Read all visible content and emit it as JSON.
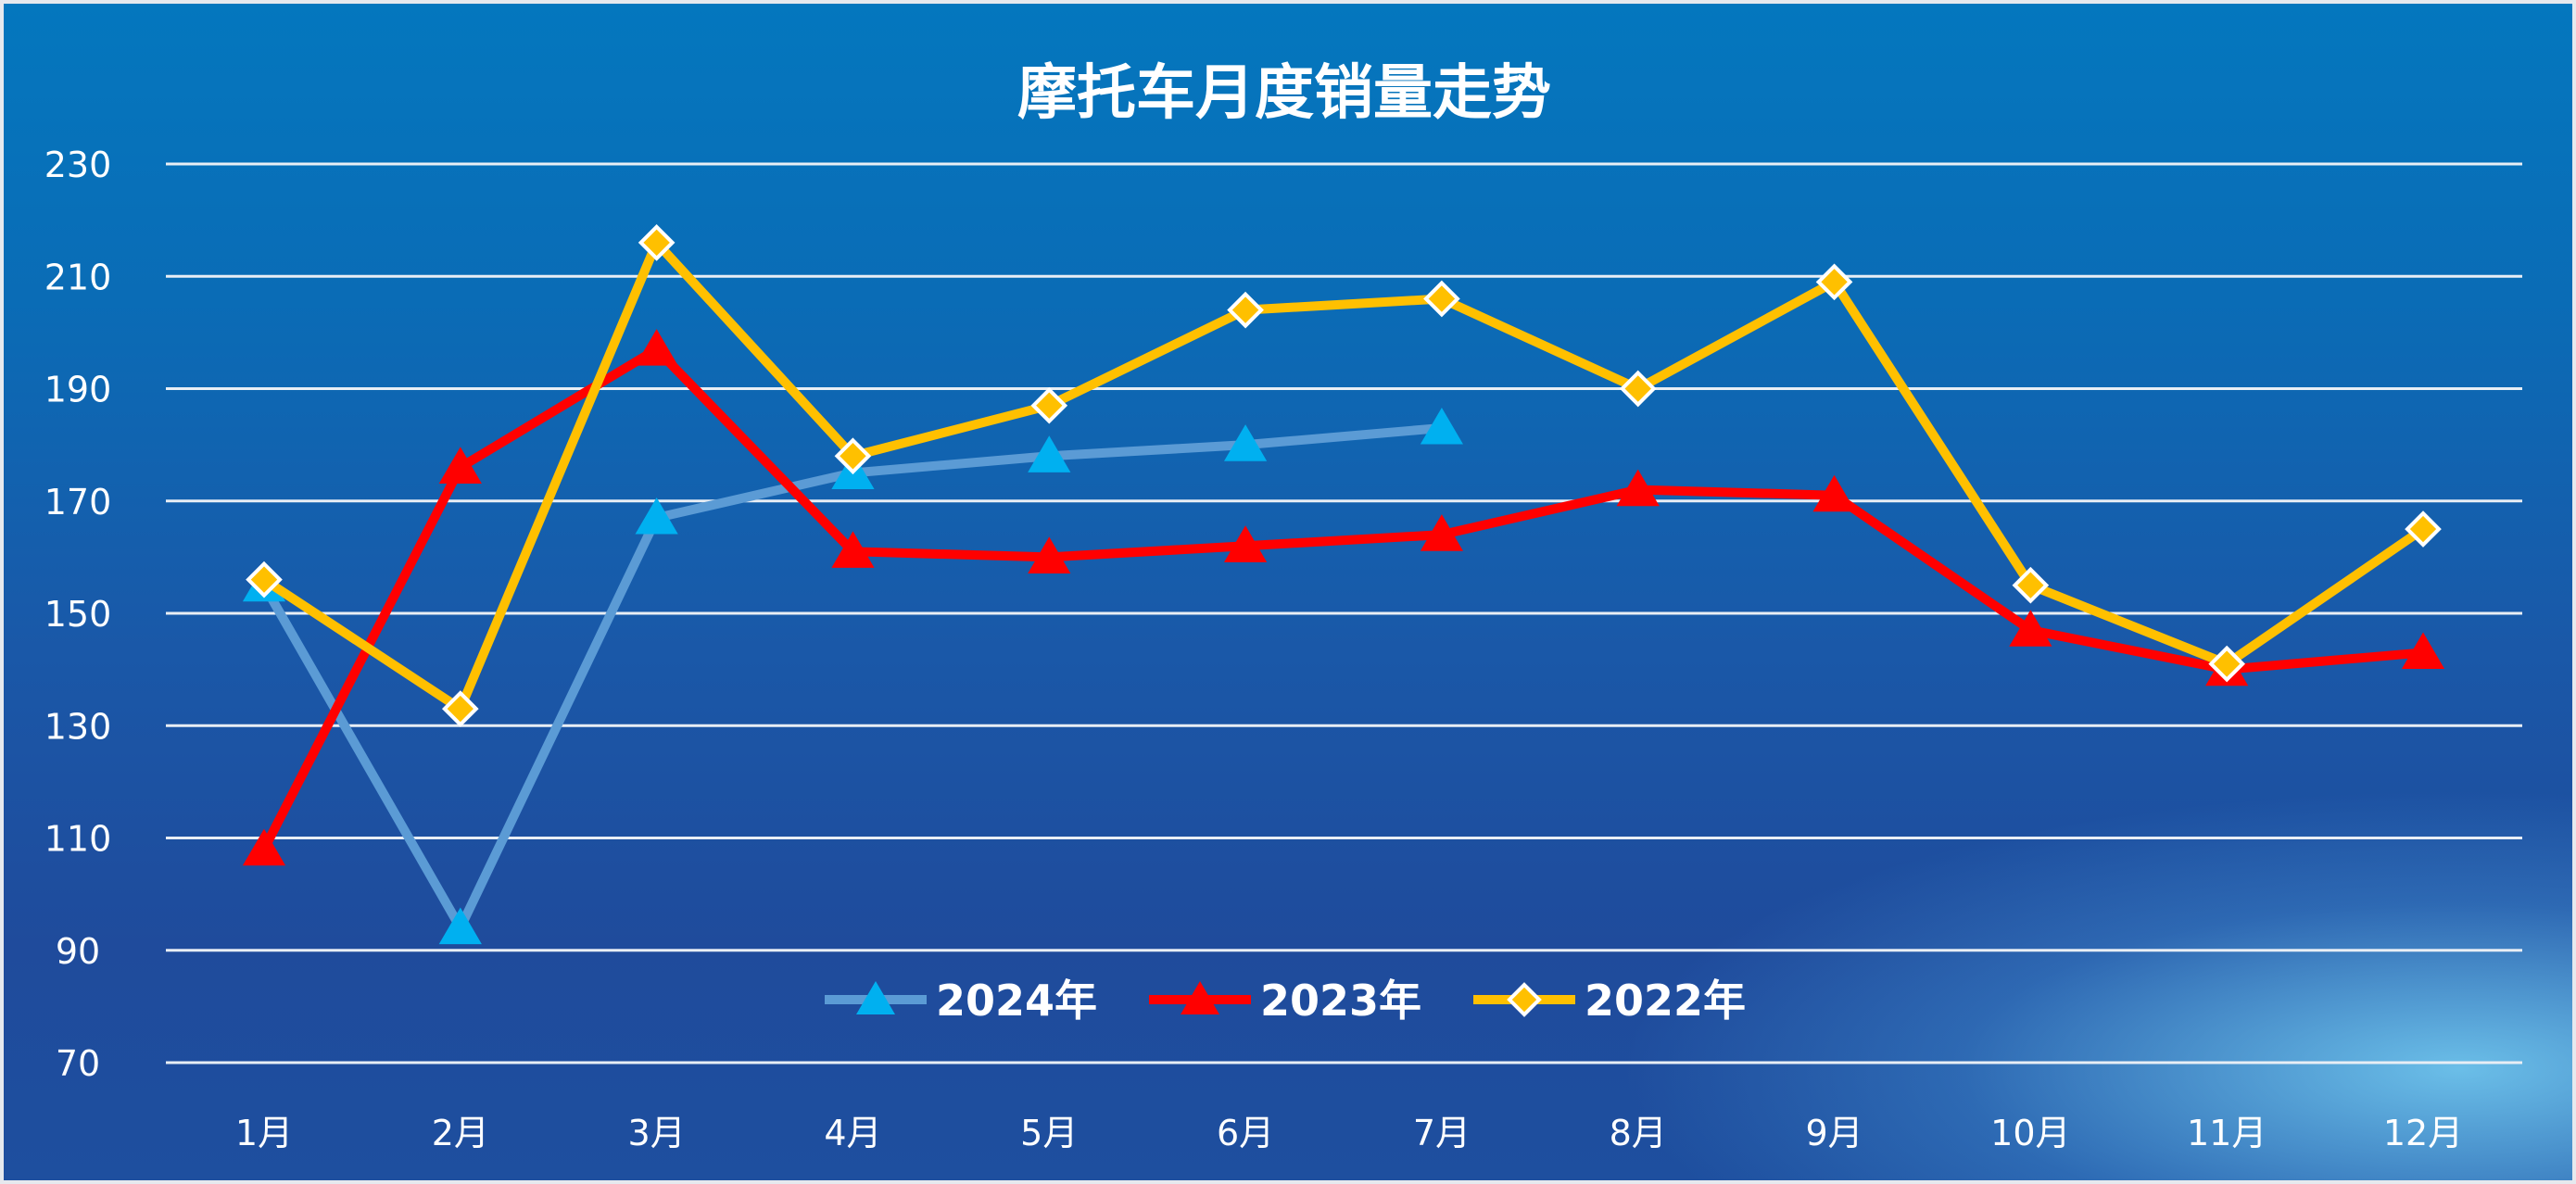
{
  "chart_data": {
    "type": "line",
    "title": "摩托车月度销量走势",
    "xlabel": "",
    "ylabel": "",
    "categories": [
      "1月",
      "2月",
      "3月",
      "4月",
      "5月",
      "6月",
      "7月",
      "8月",
      "9月",
      "10月",
      "11月",
      "12月"
    ],
    "ylim": [
      70,
      230
    ],
    "yticks": [
      70,
      90,
      110,
      130,
      150,
      170,
      190,
      210,
      230
    ],
    "grid": true,
    "legend_position": "bottom-center",
    "series": [
      {
        "name": "2024年",
        "color": "#5b9bd5",
        "marker": "triangle",
        "marker_color": "#00b0f0",
        "values": [
          155,
          94,
          167,
          175,
          178,
          180,
          183,
          null,
          null,
          null,
          null,
          null
        ]
      },
      {
        "name": "2023年",
        "color": "#ff0000",
        "marker": "triangle",
        "marker_color": "#ff0000",
        "values": [
          108,
          176,
          197,
          161,
          160,
          162,
          164,
          172,
          171,
          147,
          140,
          143
        ]
      },
      {
        "name": "2022年",
        "color": "#ffc000",
        "marker": "diamond",
        "marker_color": "#ffc000",
        "values": [
          156,
          133,
          216,
          178,
          187,
          204,
          206,
          190,
          209,
          155,
          141,
          165
        ]
      }
    ]
  }
}
